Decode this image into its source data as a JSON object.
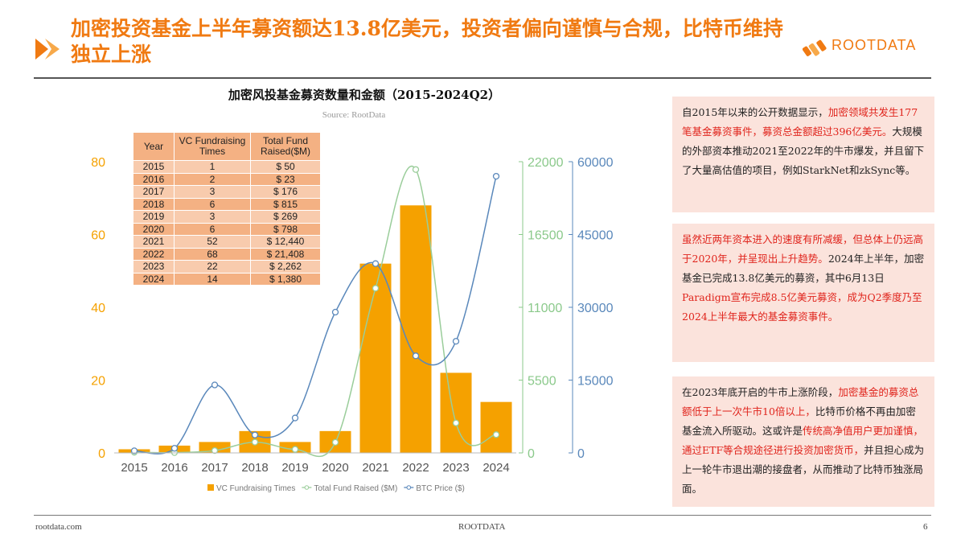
{
  "slide": {
    "title": "加密投资基金上半年募资额达13.8亿美元，投资者偏向谨慎与合规，比特币维持独立上涨",
    "logo_text": "ROOTDATA",
    "footer_left": "rootdata.com",
    "footer_center": "ROOTDATA",
    "page_number": "6",
    "accent_color": "#F07A12"
  },
  "chart_data": {
    "type": "bar",
    "title": "加密风投基金募资数量和金额（2015-2024Q2）",
    "subtitle": "Source:   RootData",
    "categories": [
      "2015",
      "2016",
      "2017",
      "2018",
      "2019",
      "2020",
      "2021",
      "2022",
      "2023",
      "2024"
    ],
    "series": [
      {
        "name": "VC Fundraising Times",
        "type": "bar",
        "axis": "left",
        "color": "#F5A100",
        "values": [
          1,
          2,
          3,
          6,
          3,
          6,
          52,
          68,
          22,
          14
        ]
      },
      {
        "name": "Total Fund Raised ($M)",
        "type": "line",
        "axis": "right1",
        "color": "#9ACD9A",
        "values": [
          50,
          23,
          176,
          815,
          269,
          798,
          12440,
          21408,
          2262,
          1380
        ]
      },
      {
        "name": "BTC Price ($)",
        "type": "line",
        "axis": "right2",
        "color": "#5A88BB",
        "values": [
          430,
          950,
          14000,
          3700,
          7200,
          29000,
          39000,
          20000,
          23000,
          57000
        ]
      }
    ],
    "axes": {
      "left": {
        "range": [
          0,
          80
        ],
        "ticks": [
          "0",
          "20",
          "40",
          "60",
          "80"
        ],
        "color": "#F5A100"
      },
      "right1": {
        "range": [
          0,
          22000
        ],
        "ticks": [
          "0",
          "5500",
          "11000",
          "16500",
          "22000"
        ],
        "color": "#8BC98B"
      },
      "right2": {
        "range": [
          0,
          60000
        ],
        "ticks": [
          "0",
          "15000",
          "30000",
          "45000",
          "60000"
        ],
        "color": "#5A88BB"
      }
    },
    "legend": {
      "position": "bottom",
      "items": [
        "VC Fundraising Times",
        "Total Fund Raised ($M)",
        "BTC Price ($)"
      ]
    },
    "table": {
      "headers": [
        "Year",
        "VC Fundraising Times",
        "Total Fund Raised($M)"
      ],
      "rows": [
        [
          "2015",
          "1",
          "$ 50"
        ],
        [
          "2016",
          "2",
          "$ 23"
        ],
        [
          "2017",
          "3",
          "$ 176"
        ],
        [
          "2018",
          "6",
          "$ 815"
        ],
        [
          "2019",
          "3",
          "$ 269"
        ],
        [
          "2020",
          "6",
          "$ 798"
        ],
        [
          "2021",
          "52",
          "$ 12,440"
        ],
        [
          "2022",
          "68",
          "$ 21,408"
        ],
        [
          "2023",
          "22",
          "$ 2,262"
        ],
        [
          "2024",
          "14",
          "$ 1,380"
        ]
      ]
    }
  },
  "panels": [
    {
      "segments": [
        {
          "text": "自2015年以来的公开数据显示，",
          "hl": false
        },
        {
          "text": "加密领域共发生177笔基金募资事件，募资总金额超过396亿美元。",
          "hl": true
        },
        {
          "text": "大规模的外部资本推动2021至2022年的牛市爆发，并且留下了大量高估值的项目，例如StarkNet和zkSync等。",
          "hl": false
        }
      ]
    },
    {
      "segments": [
        {
          "text": "虽然近两年资本进入的速度有所减缓，但总体上仍远高于2020年，并呈现出上升趋势。",
          "hl": true
        },
        {
          "text": "2024年上半年，加密基金已完成13.8亿美元的募资，其中6月13日",
          "hl": false
        },
        {
          "text": "Paradigm宣布完成8.5亿美元募资，成为Q2季度乃至2024上半年最大的基金募资事件。",
          "hl": true
        }
      ]
    },
    {
      "segments": [
        {
          "text": "在2023年底开启的牛市上涨阶段，",
          "hl": false
        },
        {
          "text": "加密基金的募资总额低于上一次牛市10倍以上，",
          "hl": true
        },
        {
          "text": "比特币价格不再由加密基金流入所驱动。这或许是",
          "hl": false
        },
        {
          "text": "传统高净值用户更加谨慎，通过ETF等合规途径进行投资加密货币，",
          "hl": true
        },
        {
          "text": "并且担心成为上一轮牛市退出潮的接盘者，从而推动了比特币独涨局面。",
          "hl": false
        }
      ]
    }
  ]
}
